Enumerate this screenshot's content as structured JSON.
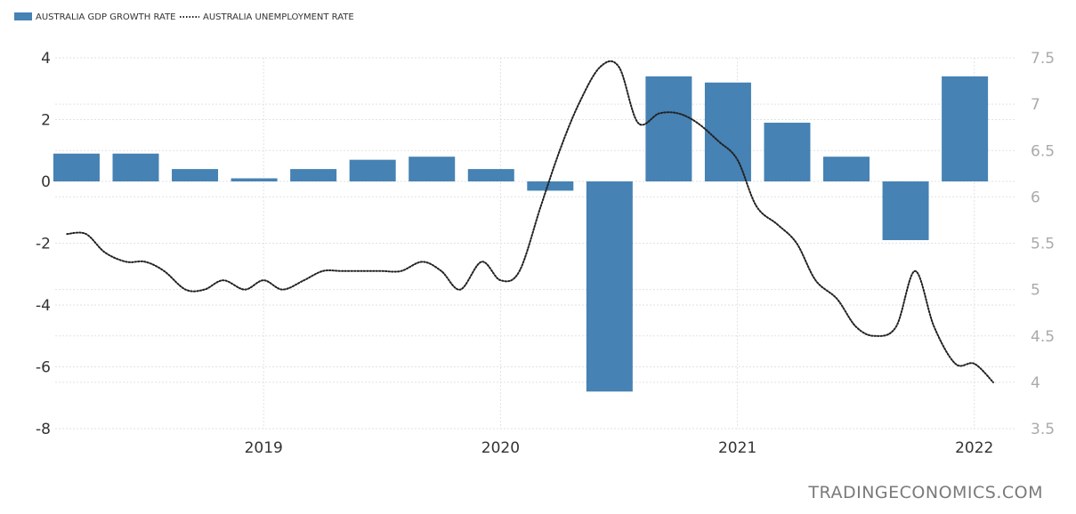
{
  "watermark": "TRADINGECONOMICS.COM",
  "colors": {
    "bar": "#4682b4",
    "line": "#222222",
    "grid": "#e2e2e2"
  },
  "chart_data": {
    "type": "bar",
    "legend": {
      "placement": "top-left",
      "entries": [
        "AUSTRALIA GDP GROWTH RATE",
        "AUSTRALIA UNEMPLOYMENT RATE"
      ]
    },
    "grid": true,
    "x_ticks": [
      "2019",
      "2020",
      "2021",
      "2022"
    ],
    "x_tick_values": [
      2019.0,
      2020.0,
      2021.0,
      2022.0
    ],
    "xlim": [
      2018.12,
      2022.17
    ],
    "y_left": {
      "ticks": [
        "4",
        "2",
        "0",
        "-2",
        "-4",
        "-6",
        "-8"
      ],
      "ylim": [
        -8,
        4
      ]
    },
    "y_right": {
      "ticks": [
        "7.5",
        "7",
        "6.5",
        "6",
        "5.5",
        "5",
        "4.5",
        "4",
        "3.5"
      ],
      "ylim": [
        3.5,
        7.5
      ]
    },
    "series": [
      {
        "name": "AUSTRALIA GDP GROWTH RATE",
        "type": "bar",
        "axis": "left",
        "categories": [
          "2018 Q1",
          "2018 Q2",
          "2018 Q3",
          "2018 Q4",
          "2019 Q1",
          "2019 Q2",
          "2019 Q3",
          "2019 Q4",
          "2020 Q1",
          "2020 Q2",
          "2020 Q3",
          "2020 Q4",
          "2021 Q1",
          "2021 Q2",
          "2021 Q3",
          "2021 Q4"
        ],
        "x": [
          2018.21,
          2018.46,
          2018.71,
          2018.96,
          2019.21,
          2019.46,
          2019.71,
          2019.96,
          2020.21,
          2020.46,
          2020.71,
          2020.96,
          2021.21,
          2021.46,
          2021.71,
          2021.96
        ],
        "values": [
          0.9,
          0.9,
          0.4,
          0.1,
          0.4,
          0.7,
          0.8,
          0.4,
          -0.3,
          -6.8,
          3.4,
          3.2,
          1.9,
          0.8,
          -1.9,
          3.4
        ]
      },
      {
        "name": "AUSTRALIA UNEMPLOYMENT RATE",
        "type": "line",
        "style": "dotted",
        "axis": "right",
        "x": [
          2018.17,
          2018.25,
          2018.33,
          2018.42,
          2018.5,
          2018.58,
          2018.67,
          2018.75,
          2018.83,
          2018.92,
          2019.0,
          2019.08,
          2019.17,
          2019.25,
          2019.33,
          2019.42,
          2019.5,
          2019.58,
          2019.67,
          2019.75,
          2019.83,
          2019.92,
          2020.0,
          2020.08,
          2020.17,
          2020.25,
          2020.33,
          2020.42,
          2020.5,
          2020.58,
          2020.67,
          2020.75,
          2020.83,
          2020.92,
          2021.0,
          2021.08,
          2021.17,
          2021.25,
          2021.33,
          2021.42,
          2021.5,
          2021.58,
          2021.67,
          2021.75,
          2021.83,
          2021.92,
          2022.0,
          2022.08
        ],
        "values": [
          5.6,
          5.6,
          5.4,
          5.3,
          5.3,
          5.2,
          5.0,
          5.0,
          5.1,
          5.0,
          5.1,
          5.0,
          5.1,
          5.2,
          5.2,
          5.2,
          5.2,
          5.2,
          5.3,
          5.2,
          5.0,
          5.3,
          5.1,
          5.2,
          5.9,
          6.5,
          7.0,
          7.4,
          7.4,
          6.8,
          6.9,
          6.9,
          6.8,
          6.6,
          6.4,
          5.9,
          5.7,
          5.5,
          5.1,
          4.9,
          4.6,
          4.5,
          4.6,
          5.2,
          4.6,
          4.2,
          4.2,
          4.0
        ]
      }
    ]
  }
}
